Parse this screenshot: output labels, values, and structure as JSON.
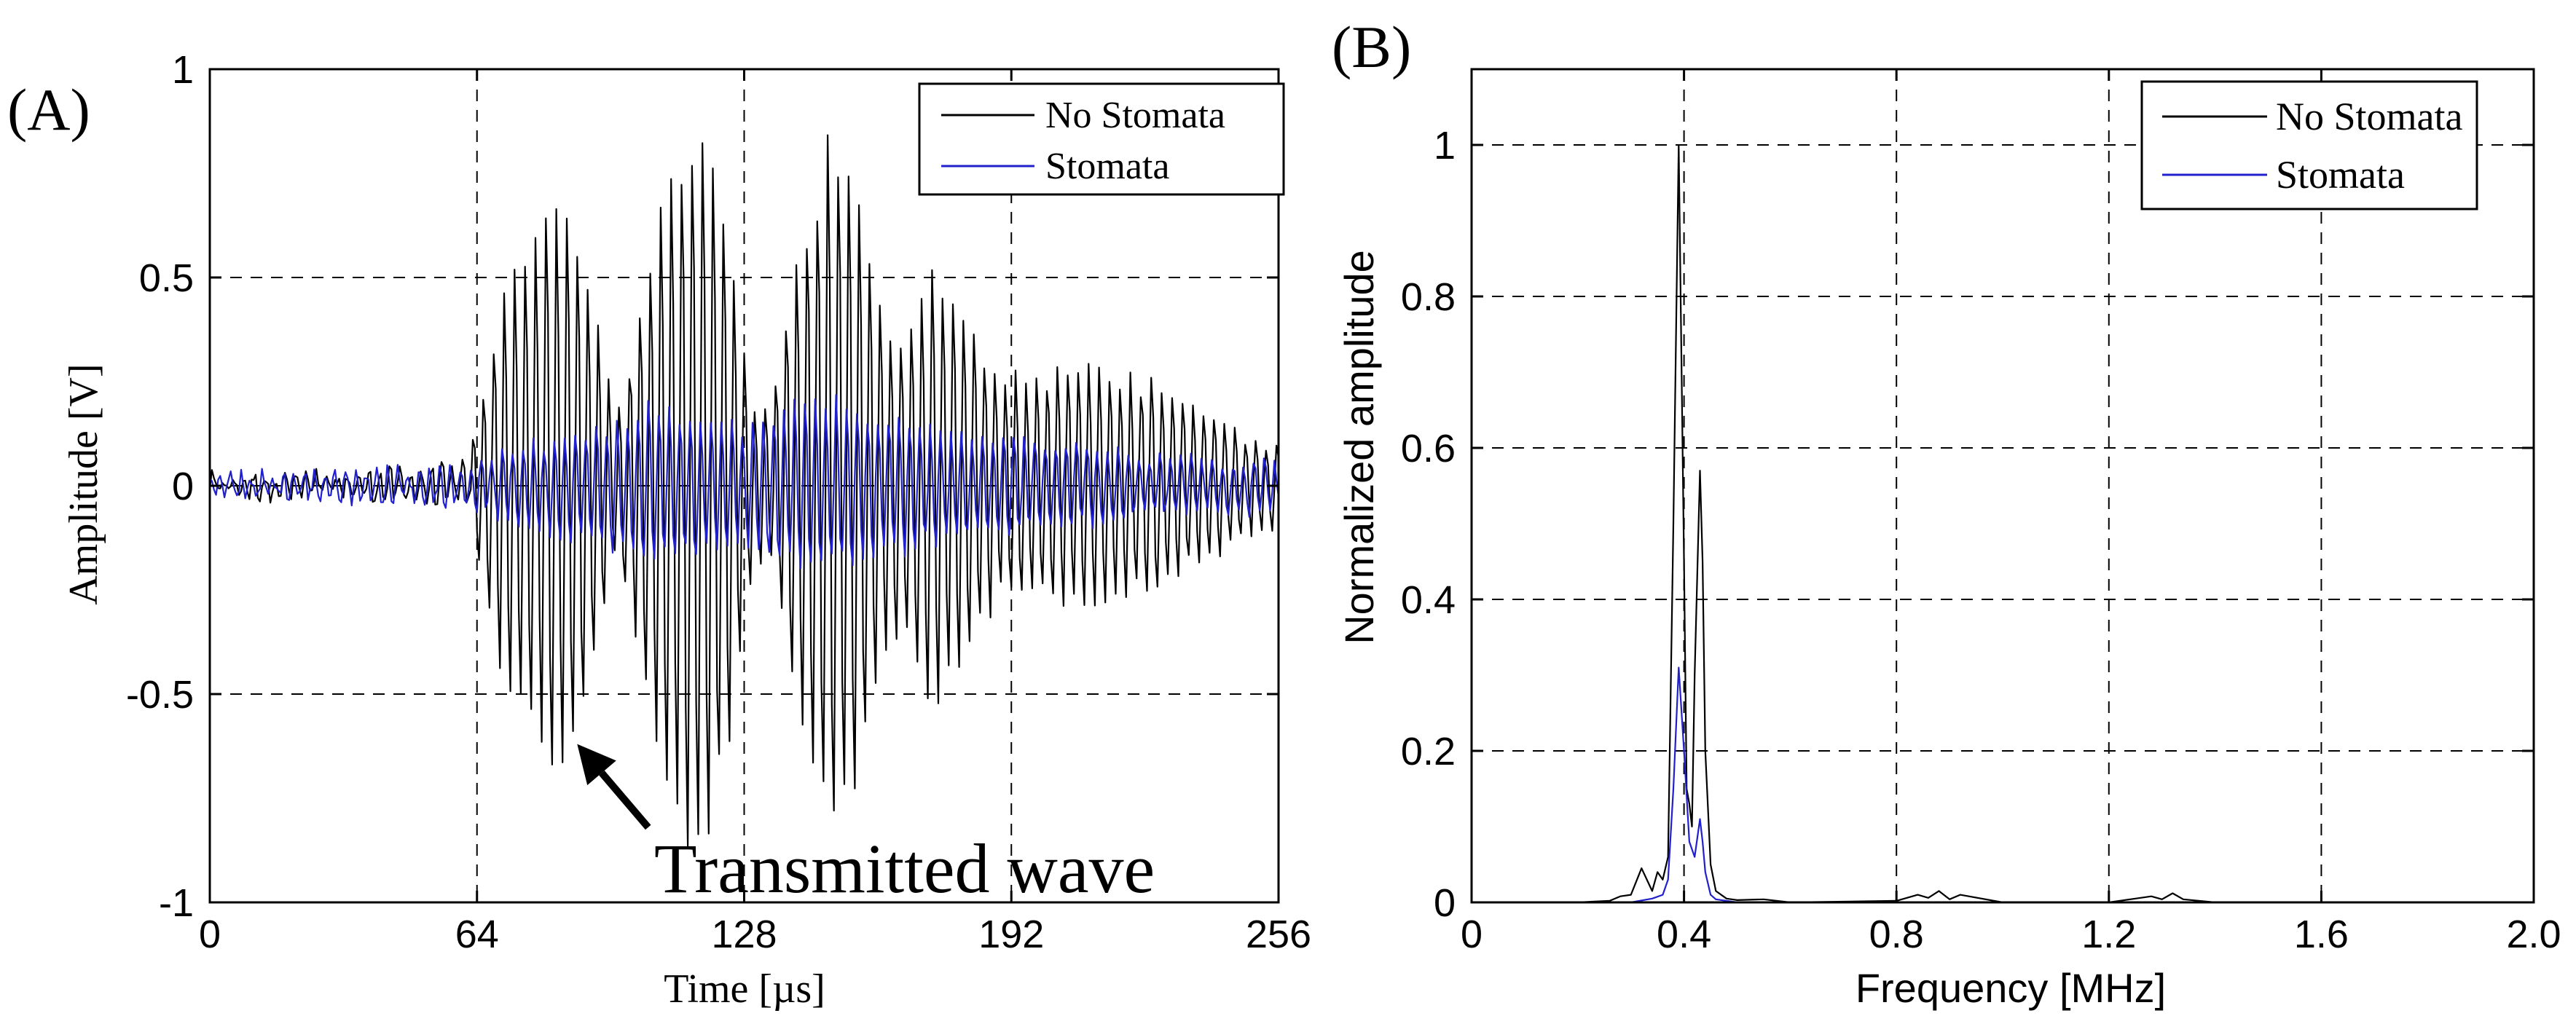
{
  "chart_data": [
    {
      "type": "line",
      "panel_label": "(A)",
      "title": "",
      "xlabel": "Time [µs]",
      "ylabel": "Amplitude [V]",
      "xlim": [
        0,
        256
      ],
      "ylim": [
        -1,
        1
      ],
      "xticks": [
        0,
        64,
        128,
        192,
        256
      ],
      "xtick_labels": [
        "0",
        "64",
        "128",
        "192",
        "256"
      ],
      "yticks": [
        -1,
        -0.5,
        0,
        0.5,
        1
      ],
      "ytick_labels": [
        "-1",
        "-0.5",
        "0",
        "0.5",
        "1"
      ],
      "grid": true,
      "legend_position": "top-right",
      "series": [
        {
          "name": "No Stomata",
          "color": "#000000",
          "signal": "burst",
          "dt": 0.5,
          "carrier_freq": 0.4,
          "noise_level": 0.02,
          "envelope": [
            [
              0,
              0.02
            ],
            [
              30,
              0.03
            ],
            [
              62,
              0.05
            ],
            [
              66,
              0.3
            ],
            [
              70,
              0.5
            ],
            [
              76,
              0.6
            ],
            [
              82,
              0.72
            ],
            [
              88,
              0.66
            ],
            [
              93,
              0.42
            ],
            [
              97,
              0.18
            ],
            [
              100,
              0.3
            ],
            [
              106,
              0.62
            ],
            [
              112,
              0.88
            ],
            [
              117,
              0.94
            ],
            [
              121,
              0.85
            ],
            [
              126,
              0.55
            ],
            [
              130,
              0.2
            ],
            [
              134,
              0.18
            ],
            [
              140,
              0.55
            ],
            [
              147,
              0.86
            ],
            [
              150,
              0.88
            ],
            [
              155,
              0.8
            ],
            [
              161,
              0.45
            ],
            [
              166,
              0.35
            ],
            [
              172,
              0.55
            ],
            [
              178,
              0.52
            ],
            [
              184,
              0.38
            ],
            [
              190,
              0.28
            ],
            [
              200,
              0.3
            ],
            [
              210,
              0.32
            ],
            [
              220,
              0.3
            ],
            [
              230,
              0.25
            ],
            [
              240,
              0.18
            ],
            [
              250,
              0.12
            ],
            [
              256,
              0.1
            ]
          ]
        },
        {
          "name": "Stomata",
          "color": "#2020cc",
          "signal": "burst",
          "dt": 0.5,
          "carrier_freq": 0.4,
          "noise_level": 0.02,
          "envelope": [
            [
              0,
              0.02
            ],
            [
              30,
              0.03
            ],
            [
              62,
              0.04
            ],
            [
              70,
              0.08
            ],
            [
              82,
              0.12
            ],
            [
              95,
              0.15
            ],
            [
              105,
              0.2
            ],
            [
              115,
              0.18
            ],
            [
              125,
              0.15
            ],
            [
              135,
              0.18
            ],
            [
              145,
              0.22
            ],
            [
              155,
              0.2
            ],
            [
              165,
              0.17
            ],
            [
              175,
              0.14
            ],
            [
              190,
              0.12
            ],
            [
              210,
              0.1
            ],
            [
              230,
              0.07
            ],
            [
              256,
              0.06
            ]
          ]
        }
      ],
      "annotations": [
        {
          "text": "Transmitted wave",
          "arrow_to": [
            88,
            -0.62
          ],
          "arrow_from": [
            105,
            -0.82
          ]
        }
      ]
    },
    {
      "type": "line",
      "panel_label": "(B)",
      "title": "",
      "xlabel": "Frequency [MHz]",
      "ylabel": "Normalized amplitude",
      "xlim": [
        0,
        2.0
      ],
      "ylim": [
        0,
        1.1
      ],
      "xticks": [
        0,
        0.4,
        0.8,
        1.2,
        1.6,
        2.0
      ],
      "xtick_labels": [
        "0",
        "0.4",
        "0.8",
        "1.2",
        "1.6",
        "2.0"
      ],
      "yticks": [
        0,
        0.2,
        0.4,
        0.6,
        0.8,
        1
      ],
      "ytick_labels": [
        "0",
        "0.2",
        "0.4",
        "0.6",
        "0.8",
        "1"
      ],
      "grid": true,
      "legend_position": "top-right",
      "series": [
        {
          "name": "No Stomata",
          "color": "#000000",
          "x": [
            0,
            0.2,
            0.26,
            0.28,
            0.3,
            0.32,
            0.34,
            0.35,
            0.36,
            0.37,
            0.38,
            0.39,
            0.4,
            0.405,
            0.41,
            0.415,
            0.42,
            0.43,
            0.435,
            0.44,
            0.45,
            0.46,
            0.48,
            0.5,
            0.55,
            0.6,
            0.8,
            0.84,
            0.86,
            0.88,
            0.9,
            0.92,
            1.0,
            1.2,
            1.25,
            1.28,
            1.3,
            1.32,
            1.34,
            1.4,
            2.0
          ],
          "y": [
            0,
            0,
            0.002,
            0.008,
            0.01,
            0.045,
            0.015,
            0.04,
            0.03,
            0.06,
            0.5,
            1.0,
            0.45,
            0.15,
            0.13,
            0.1,
            0.3,
            0.57,
            0.45,
            0.2,
            0.05,
            0.015,
            0.005,
            0.003,
            0.004,
            0,
            0.002,
            0.01,
            0.006,
            0.015,
            0.004,
            0.01,
            0,
            0,
            0.005,
            0.008,
            0.004,
            0.012,
            0.004,
            0,
            0
          ]
        },
        {
          "name": "Stomata",
          "color": "#2020cc",
          "x": [
            0,
            0.3,
            0.34,
            0.36,
            0.37,
            0.38,
            0.39,
            0.4,
            0.41,
            0.42,
            0.43,
            0.435,
            0.44,
            0.45,
            0.46,
            0.5,
            2.0
          ],
          "y": [
            0,
            0,
            0.005,
            0.01,
            0.03,
            0.15,
            0.31,
            0.2,
            0.08,
            0.06,
            0.11,
            0.08,
            0.04,
            0.01,
            0.004,
            0,
            0
          ]
        }
      ]
    }
  ]
}
